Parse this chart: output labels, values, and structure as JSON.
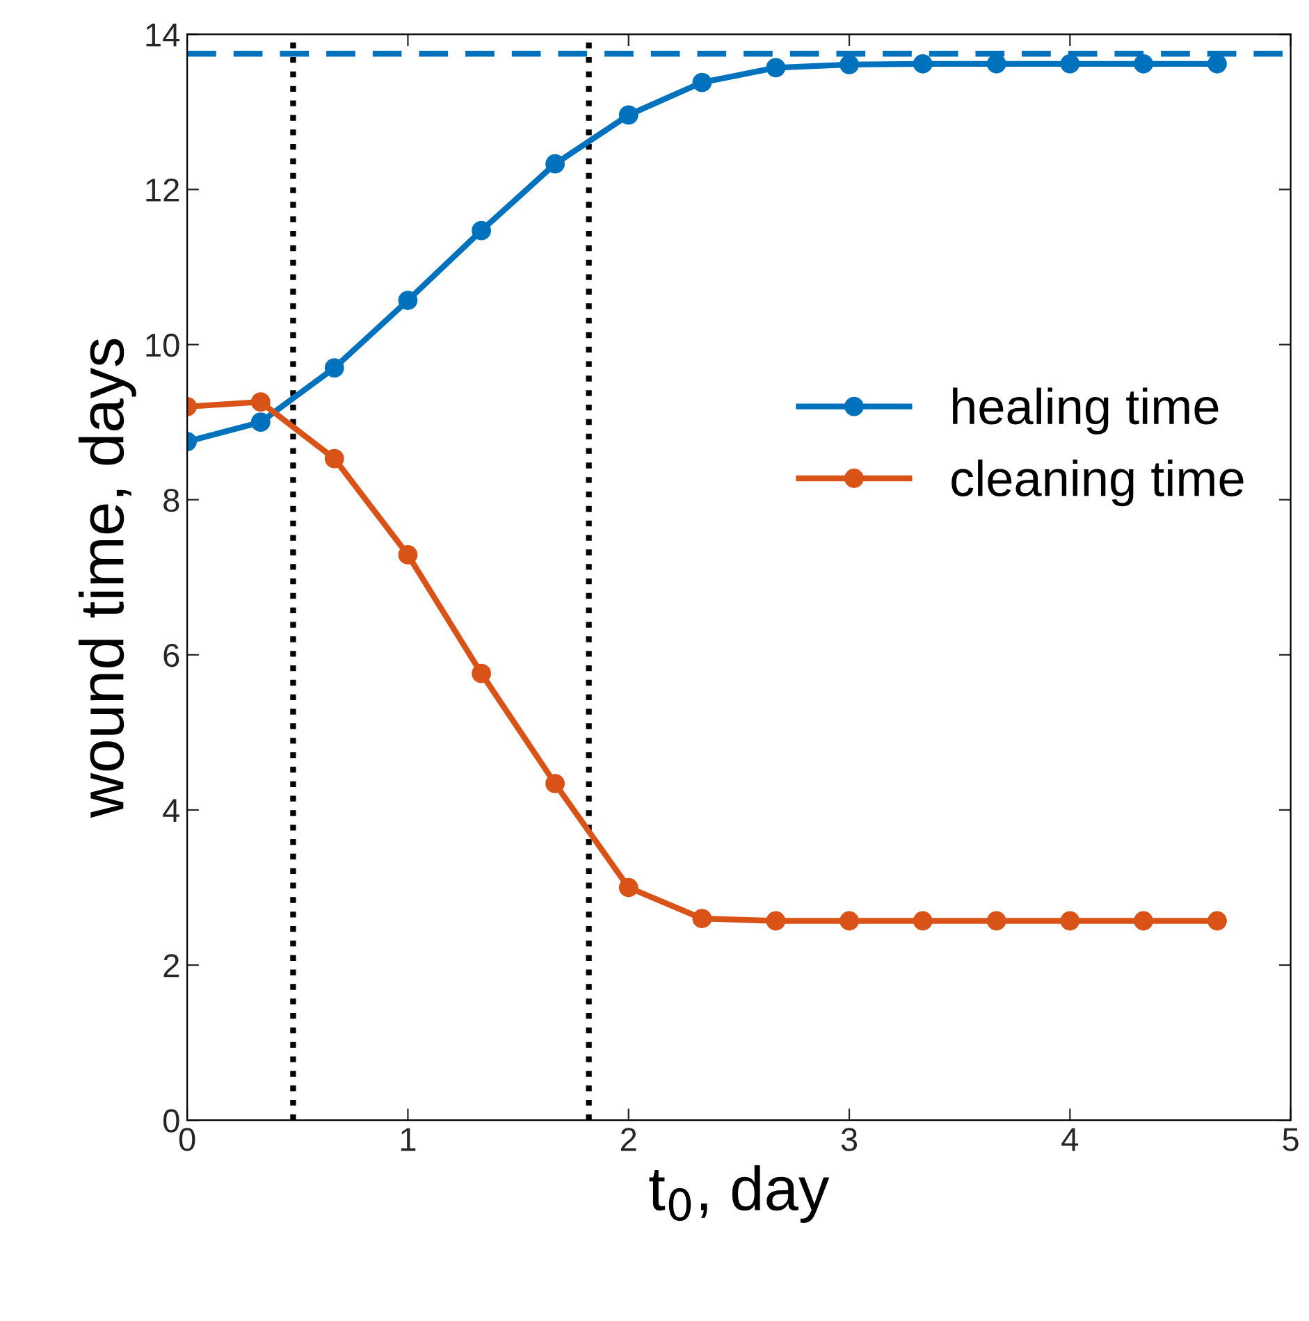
{
  "chart_data": {
    "type": "line",
    "xlabel": "t$_{0}$, day",
    "ylabel": "wound time, days",
    "x": [
      0,
      0.333,
      0.667,
      1,
      1.333,
      1.667,
      2,
      2.333,
      2.667,
      3,
      3.333,
      3.667,
      4,
      4.333,
      4.667
    ],
    "series": [
      {
        "name": "healing time",
        "color": "#0072bd",
        "values": [
          8.75,
          9.0,
          9.7,
          10.57,
          11.47,
          12.33,
          12.96,
          13.38,
          13.57,
          13.61,
          13.62,
          13.62,
          13.62,
          13.62,
          13.62
        ]
      },
      {
        "name": "cleaning time",
        "color": "#d95319",
        "values": [
          9.2,
          9.26,
          8.53,
          7.29,
          5.76,
          4.34,
          3.0,
          2.6,
          2.57,
          2.57,
          2.57,
          2.57,
          2.57,
          2.57,
          2.57
        ]
      }
    ],
    "ref_lines": [
      {
        "axis": "y",
        "value": 13.75,
        "color": "#0072bd",
        "line_style": "dashed"
      },
      {
        "axis": "x",
        "value": 0.48,
        "color": "#000000",
        "line_style": "dotted"
      },
      {
        "axis": "x",
        "value": 1.82,
        "color": "#000000",
        "line_style": "dotted"
      }
    ],
    "xlim": [
      0,
      5
    ],
    "xticks": [
      0,
      1,
      2,
      3,
      4,
      5
    ],
    "ylim": [
      0,
      14
    ],
    "yticks": [
      0,
      2,
      4,
      6,
      8,
      10,
      12,
      14
    ],
    "marker": "circle",
    "line_style": "solid",
    "grid": false,
    "legend": "right"
  }
}
